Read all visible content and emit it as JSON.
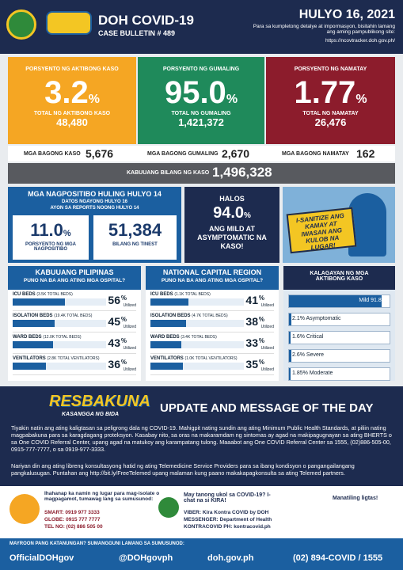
{
  "header": {
    "title": "DOH COVID-19",
    "bulletin": "CASE BULLETIN # 489",
    "date": "HULYO 16, 2021",
    "note": "Para sa kumpletong detalye at impormasyon, bisitahin lamang ang aming pampublikong site:",
    "site": "https://ncovtracker.doh.gov.ph/"
  },
  "stats": [
    {
      "label": "PORSYENTO NG AKTIBONG KASO",
      "percent": "3.2",
      "unit": "%",
      "total_label": "TOTAL NG AKTIBONG KASO",
      "total": "48,480"
    },
    {
      "label": "PORSYENTO NG GUMALING",
      "percent": "95.0",
      "unit": "%",
      "total_label": "TOTAL NG GUMALING",
      "total": "1,421,372"
    },
    {
      "label": "PORSYENTO NG NAMATAY",
      "percent": "1.77",
      "unit": "%",
      "total_label": "TOTAL NG NAMATAY",
      "total": "26,476"
    }
  ],
  "new": [
    {
      "label": "MGA BAGONG KASO",
      "value": "5,676"
    },
    {
      "label": "MGA BAGONG GUMALING",
      "value": "2,670"
    },
    {
      "label": "MGA BAGONG NAMATAY",
      "value": "162"
    }
  ],
  "total_cases": {
    "label": "KABUUANG BILANG NG KASO",
    "value": "1,496,328"
  },
  "positivity": {
    "title": "MGA NAGPOSITIBO HULING HULYO 14",
    "subtitle": "DATOS NGAYONG HULYO 16",
    "subtitle2": "AYON SA REPORTS NOONG HULYO 14",
    "rate": "11.0",
    "unit": "%",
    "rate_label": "PORSYENTO NG MGA NAGPOSITIBO",
    "tested": "51,384",
    "tested_label": "BILANG NG TINEST"
  },
  "mild": {
    "line1": "HALOS",
    "value": "94.0",
    "unit": "%",
    "line2": "ANG MILD AT ASYMPTOMATIC NA KASO!"
  },
  "poster": {
    "text": "I-SANITIZE ANG KAMAY AT IWASAN ANG KULOB NA LUGAR!"
  },
  "hospitals": [
    {
      "title": "KABUUANG PILIPINAS",
      "subtitle": "PUNO NA BA ANG ATING MGA OSPITAL?",
      "rows": [
        {
          "label": "ICU BEDS",
          "detail": "(3.5K TOTAL BEDS)",
          "value": 56,
          "unit": "%",
          "suffix": "Utilized"
        },
        {
          "label": "ISOLATION BEDS",
          "detail": "(19.4K TOTAL BEDS)",
          "value": 45,
          "unit": "%",
          "suffix": "Utilized"
        },
        {
          "label": "WARD BEDS",
          "detail": "(12.0K TOTAL BEDS)",
          "value": 43,
          "unit": "%",
          "suffix": "Utilized"
        },
        {
          "label": "VENTILATORS",
          "detail": "(2.8K TOTAL VENTILATORS)",
          "value": 36,
          "unit": "%",
          "suffix": "Utilized"
        }
      ]
    },
    {
      "title": "NATIONAL CAPITAL REGION",
      "subtitle": "PUNO NA BA ANG ATING MGA OSPITAL?",
      "rows": [
        {
          "label": "ICU BEDS",
          "detail": "(1.1K TOTAL BEDS)",
          "value": 41,
          "unit": "%",
          "suffix": "Utilized"
        },
        {
          "label": "ISOLATION BEDS",
          "detail": "(4.7K TOTAL BEDS)",
          "value": 38,
          "unit": "%",
          "suffix": "Utilized"
        },
        {
          "label": "WARD BEDS",
          "detail": "(3.4K TOTAL BEDS)",
          "value": 33,
          "unit": "%",
          "suffix": "Utilized"
        },
        {
          "label": "VENTILATORS",
          "detail": "(1.0K TOTAL VENTILATORS)",
          "value": 35,
          "unit": "%",
          "suffix": "Utilized"
        }
      ]
    }
  ],
  "status": {
    "title": "KALAGAYAN NG MGA AKTIBONG KASO",
    "rows": [
      {
        "label": "Mild 91.8%",
        "value": 91.8
      },
      {
        "label": "2.1% Asymptomatic",
        "value": 2.1
      },
      {
        "label": "1.6% Critical",
        "value": 1.6
      },
      {
        "label": "2.6% Severe",
        "value": 2.6
      },
      {
        "label": "1.85% Moderate",
        "value": 1.85
      }
    ]
  },
  "update": {
    "logo": "RESBAKUNA",
    "logo_sub": "KASANGGA NG BIDA",
    "title": "UPDATE AND MESSAGE OF THE DAY",
    "p1": "Tiyakin natin ang ating kaligtasan sa peligrong dala ng COVID-19. Mahigpit nating sundin ang ating Minimum Public Health Standards, at piliin nating magpabakuna para sa karagdagang proteksyon. Kasabay nito, sa oras na makaramdam ng sintomas ay agad na makipagugnayan sa ating BHERTS o sa One COVID Referral Center, upang agad na matukoy ang karampatang tulong. Maaabot ang One COVID Referral Center sa 1555, (02)886-505-00, 0915-777-7777, o sa 0919-977-3333.",
    "p2": "Nariyan din ang ating libreng konsultasyong hatid ng ating Telemedicine Service Providers para sa ibang kondisyon o pangangailangang pangkalusugan. Puntahan ang http://bit.ly/FreeTelemed upang malaman kung paano makakapagkonsulta sa ating Telemed partners."
  },
  "contacts": {
    "isolate": "Ihahanap ka namin ng lugar para mag-isolate o magpagamot, tumawag lang sa sumusunod:",
    "smart": "SMART: 0919 977 3333",
    "globe": "GLOBE: 0915 777 7777",
    "telno": "TEL NO: (02) 886 505 00",
    "kira": "May tanong ukol sa COVID-19? I-chat na si KIRA!",
    "viber": "VIBER: Kira Kontra COVID by DOH",
    "messenger": "MESSENGER: Department of Health",
    "kontracovid": "KONTRACOVID PH: kontracovid.ph",
    "safe": "Manatiling ligtas!"
  },
  "footer": {
    "question": "MAYROON PANG KATANUNGAN? SUMANGGUNI LAMANG SA SUMUSUNOD:",
    "facebook": "OfficialDOHgov",
    "twitter": "@DOHgovph",
    "web": "doh.gov.ph",
    "hotline": "(02) 894-COVID / 1555"
  }
}
